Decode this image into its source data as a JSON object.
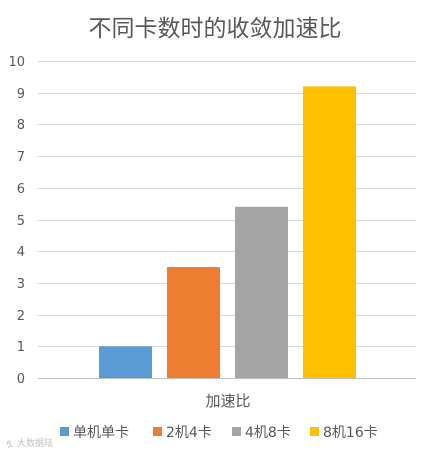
{
  "chart_data": {
    "type": "bar",
    "title": "不同卡数时的收敛加速比",
    "categories": [
      "加速比"
    ],
    "series": [
      {
        "name": "单机单卡",
        "values": [
          1.0
        ],
        "color": "#5b9bd5"
      },
      {
        "name": "2机4卡",
        "values": [
          3.5
        ],
        "color": "#ed7d31"
      },
      {
        "name": "4机8卡",
        "values": [
          5.4
        ],
        "color": "#a5a5a5"
      },
      {
        "name": "8机16卡",
        "values": [
          9.2
        ],
        "color": "#ffc000"
      }
    ],
    "ylim": [
      0,
      10
    ],
    "yticks": [
      "0",
      "1",
      "2",
      "3",
      "4",
      "5",
      "6",
      "7",
      "8",
      "9",
      "10"
    ],
    "grid": true,
    "legend": "bottom"
  },
  "watermark": "大数据陆"
}
